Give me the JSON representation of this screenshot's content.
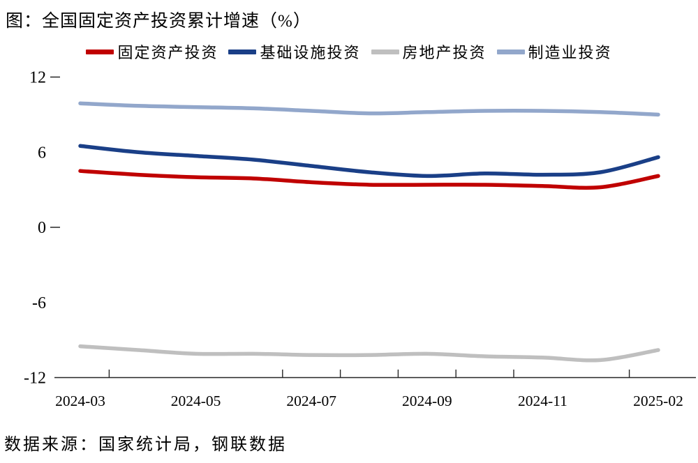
{
  "page": {
    "title": "图：全国固定资产投资累计增速（%）",
    "source": "数据来源：国家统计局，钢联数据"
  },
  "colors": {
    "fai_red": "#C00000",
    "infra_navy": "#1A3F87",
    "realestate_gray": "#BFBFBF",
    "manufacturing_blue": "#92A7CB",
    "axis": "#262626",
    "text": "#000000"
  },
  "chart_data": {
    "type": "line",
    "title": "图：全国固定资产投资累计增速（%）",
    "x": [
      "2024-03",
      "2024-04",
      "2024-05",
      "2024-06",
      "2024-07",
      "2024-08",
      "2024-09",
      "2024-10",
      "2024-11",
      "2024-12",
      "2025-02"
    ],
    "series": [
      {
        "name": "固定资产投资",
        "color": "#C00000",
        "values": [
          4.5,
          4.2,
          4.0,
          3.9,
          3.6,
          3.4,
          3.4,
          3.4,
          3.3,
          3.2,
          4.1
        ]
      },
      {
        "name": "基础设施投资",
        "color": "#1A3F87",
        "values": [
          6.5,
          6.0,
          5.7,
          5.4,
          4.9,
          4.4,
          4.1,
          4.3,
          4.2,
          4.4,
          5.6
        ]
      },
      {
        "name": "房地产投资",
        "color": "#BFBFBF",
        "values": [
          -9.5,
          -9.8,
          -10.1,
          -10.1,
          -10.2,
          -10.2,
          -10.1,
          -10.3,
          -10.4,
          -10.6,
          -9.8
        ]
      },
      {
        "name": "制造业投资",
        "color": "#92A7CB",
        "values": [
          9.9,
          9.7,
          9.6,
          9.5,
          9.3,
          9.1,
          9.2,
          9.3,
          9.3,
          9.2,
          9.0
        ]
      }
    ],
    "ylim": [
      -12,
      12
    ],
    "yticks": [
      "12",
      "6",
      "0",
      "-6",
      "-12"
    ],
    "ytick_values": [
      12,
      6,
      0,
      -6,
      -12
    ],
    "y_dash_tick_values": [
      12,
      0
    ],
    "x_tick_labels": [
      "2024-03",
      "2024-05",
      "2024-07",
      "2024-09",
      "2024-11",
      "2025-02"
    ],
    "x_tick_label_indices": [
      0,
      2,
      4,
      6,
      8,
      10
    ],
    "x_minor_tick_positions": [
      0.5,
      3.5,
      4.5,
      5.5,
      6.5,
      7.5,
      9.5
    ],
    "grid": false,
    "legend_position": "top",
    "xlabel": "",
    "ylabel": ""
  }
}
